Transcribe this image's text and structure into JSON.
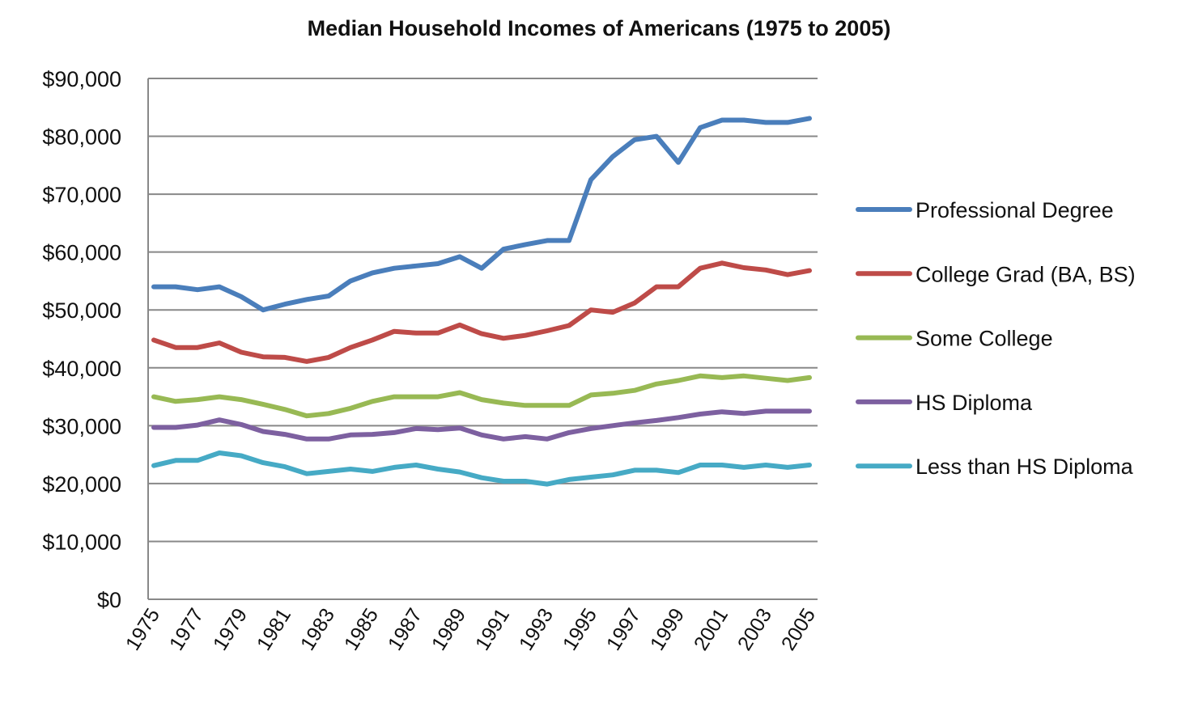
{
  "chart_data": {
    "type": "line",
    "title": "Median Household Incomes of Americans (1975 to 2005)",
    "xlabel": "",
    "ylabel": "",
    "ylim": [
      0,
      90000
    ],
    "y_ticks": [
      "$0",
      "$10,000",
      "$20,000",
      "$30,000",
      "$40,000",
      "$50,000",
      "$60,000",
      "$70,000",
      "$80,000",
      "$90,000"
    ],
    "x": [
      1975,
      1976,
      1977,
      1978,
      1979,
      1980,
      1981,
      1982,
      1983,
      1984,
      1985,
      1986,
      1987,
      1988,
      1989,
      1990,
      1991,
      1992,
      1993,
      1994,
      1995,
      1996,
      1997,
      1998,
      1999,
      2000,
      2001,
      2002,
      2003,
      2004,
      2005
    ],
    "x_tick_labels": [
      "1975",
      "1977",
      "1979",
      "1981",
      "1983",
      "1985",
      "1987",
      "1989",
      "1991",
      "1993",
      "1995",
      "1997",
      "1999",
      "2001",
      "2003",
      "2005"
    ],
    "grid": true,
    "legend_position": "right",
    "series": [
      {
        "name": "Professional Degree",
        "color": "#4a7ebb",
        "values": [
          54000,
          54000,
          53500,
          54000,
          52300,
          50000,
          51000,
          51800,
          52400,
          55000,
          56400,
          57200,
          57600,
          58000,
          59200,
          57200,
          60500,
          61300,
          62000,
          62000,
          72500,
          76500,
          79400,
          80000,
          75500,
          81500,
          82800,
          82800,
          82400,
          82400,
          83100
        ]
      },
      {
        "name": "College Grad (BA, BS)",
        "color": "#be4b48",
        "values": [
          44800,
          43500,
          43500,
          44300,
          42700,
          41900,
          41800,
          41100,
          41800,
          43500,
          44800,
          46300,
          46000,
          46000,
          47400,
          45900,
          45100,
          45600,
          46400,
          47300,
          50000,
          49600,
          51200,
          54000,
          54000,
          57200,
          58100,
          57300,
          56900,
          56100,
          56800
        ]
      },
      {
        "name": "Some College",
        "color": "#98b954",
        "values": [
          35000,
          34200,
          34500,
          35000,
          34500,
          33700,
          32800,
          31700,
          32100,
          33000,
          34200,
          35000,
          35000,
          35000,
          35700,
          34500,
          33900,
          33500,
          33500,
          33500,
          35300,
          35600,
          36100,
          37200,
          37800,
          38600,
          38300,
          38600,
          38200,
          37800,
          38300
        ]
      },
      {
        "name": "HS Diploma",
        "color": "#7d60a0",
        "values": [
          29700,
          29700,
          30100,
          31000,
          30200,
          29000,
          28500,
          27700,
          27700,
          28400,
          28500,
          28800,
          29500,
          29300,
          29600,
          28400,
          27700,
          28100,
          27700,
          28800,
          29500,
          30000,
          30500,
          30900,
          31400,
          32000,
          32400,
          32100,
          32500,
          32500,
          32500
        ]
      },
      {
        "name": "Less than HS Diploma",
        "color": "#46aac5",
        "values": [
          23100,
          24000,
          24000,
          25300,
          24800,
          23600,
          22900,
          21700,
          22100,
          22500,
          22100,
          22800,
          23200,
          22500,
          22000,
          21000,
          20400,
          20400,
          19900,
          20700,
          21100,
          21500,
          22300,
          22300,
          21900,
          23200,
          23200,
          22800,
          23200,
          22800,
          23200
        ]
      }
    ]
  }
}
